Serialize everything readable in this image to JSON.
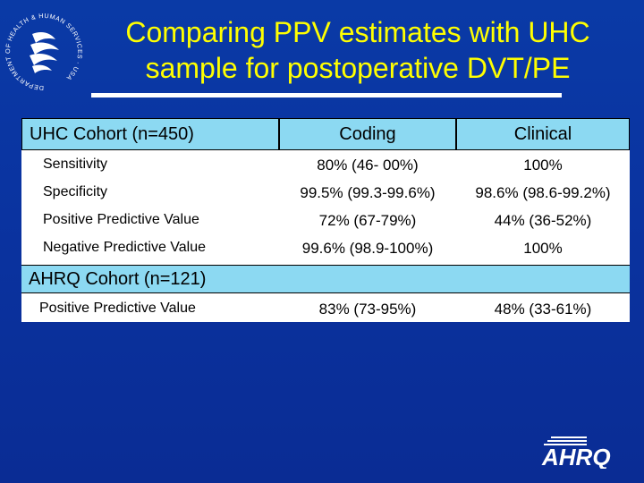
{
  "title": {
    "line1": "Comparing PPV estimates with UHC",
    "line2": "sample for postoperative DVT/PE"
  },
  "table": {
    "uhc_header": "UHC Cohort (n=450)",
    "col_coding": "Coding",
    "col_clinical": "Clinical",
    "rows": [
      {
        "label": "Sensitivity",
        "coding": "80% (46- 00%)",
        "clinical": "100%"
      },
      {
        "label": "Specificity",
        "coding": "99.5% (99.3-99.6%)",
        "clinical": "98.6% (98.6-99.2%)"
      },
      {
        "label": "Positive Predictive Value",
        "coding": "72% (67-79%)",
        "clinical": "44% (36-52%)"
      },
      {
        "label": "Negative Predictive Value",
        "coding": "99.6% (98.9-100%)",
        "clinical": "100%"
      }
    ],
    "ahrq_header": "AHRQ Cohort (n=121)",
    "ahrq_rows": [
      {
        "label": "Positive Predictive Value",
        "coding": "83% (73-95%)",
        "clinical": "48% (33-61%)"
      }
    ]
  },
  "logos": {
    "hhs_ring_text": "DEPARTMENT OF HEALTH & HUMAN SERVICES · USA",
    "ahrq_text": "AHRQ"
  },
  "colors": {
    "background": "#0a3aa6",
    "title": "#ffff00",
    "header_fill": "#8cd9f2",
    "table_fill": "#ffffff"
  }
}
